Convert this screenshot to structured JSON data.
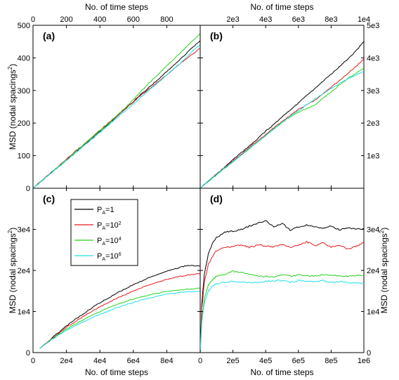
{
  "colors": {
    "P_A=1": "#000000",
    "P_A=10^2": "#e8191c",
    "P_A=10^4": "#26d11b",
    "P_A=10^6": "#1ee0e8"
  },
  "legend": {
    "placement": "panel-c-top-left",
    "entries": [
      {
        "key": "P_A=1",
        "base": "P",
        "sub": "A",
        "eq": "=1",
        "sup": ""
      },
      {
        "key": "P_A=10^2",
        "base": "P",
        "sub": "A",
        "eq": "=10",
        "sup": "2"
      },
      {
        "key": "P_A=10^4",
        "base": "P",
        "sub": "A",
        "eq": "=10",
        "sup": "4"
      },
      {
        "key": "P_A=10^6",
        "base": "P",
        "sub": "A",
        "eq": "=10",
        "sup": "6"
      }
    ]
  },
  "chart_data": [
    {
      "panel": "(a)",
      "type": "line",
      "xlabel": "No. of time steps",
      "xlabel_position": "top",
      "ylabel": "MSD (nodal spacings",
      "ylabel_sup": "2",
      "ylabel_close": ")",
      "ylabel_position": "left",
      "xlim": [
        0,
        1000
      ],
      "ylim": [
        0,
        500
      ],
      "xticks": [
        200,
        400,
        600,
        800
      ],
      "xtick_labels": [
        "200",
        "400",
        "600",
        "800"
      ],
      "yticks": [
        0,
        100,
        200,
        300,
        400,
        500
      ],
      "ytick_labels": [
        "0",
        "100",
        "200",
        "300",
        "400",
        "500"
      ],
      "origin_label": "0",
      "series": [
        {
          "key": "P_A=1",
          "x": [
            0,
            50,
            100,
            150,
            200,
            250,
            300,
            350,
            400,
            450,
            500,
            550,
            600,
            650,
            700,
            750,
            800,
            850,
            900,
            950,
            1000
          ],
          "y": [
            0,
            22,
            44,
            66,
            88,
            110,
            130,
            152,
            174,
            196,
            220,
            242,
            266,
            290,
            312,
            335,
            358,
            382,
            405,
            430,
            453
          ]
        },
        {
          "key": "P_A=10^2",
          "x": [
            0,
            50,
            100,
            150,
            200,
            250,
            300,
            350,
            400,
            450,
            500,
            550,
            600,
            650,
            700,
            750,
            800,
            850,
            900,
            950,
            1000
          ],
          "y": [
            0,
            22,
            45,
            66,
            89,
            112,
            133,
            155,
            178,
            200,
            221,
            243,
            264,
            287,
            307,
            328,
            348,
            370,
            390,
            410,
            430
          ]
        },
        {
          "key": "P_A=10^4",
          "x": [
            0,
            50,
            100,
            150,
            200,
            250,
            300,
            350,
            400,
            450,
            500,
            550,
            600,
            650,
            700,
            750,
            800,
            850,
            900,
            950,
            1000
          ],
          "y": [
            0,
            22,
            43,
            66,
            86,
            110,
            132,
            155,
            176,
            198,
            222,
            246,
            272,
            300,
            326,
            350,
            376,
            400,
            425,
            450,
            475
          ]
        },
        {
          "key": "P_A=10^6",
          "x": [
            0,
            50,
            100,
            150,
            200,
            250,
            300,
            350,
            400,
            450,
            500,
            550,
            600,
            650,
            700,
            750,
            800,
            850,
            900,
            950,
            1000
          ],
          "y": [
            0,
            21,
            43,
            64,
            85,
            106,
            128,
            150,
            171,
            193,
            215,
            237,
            258,
            281,
            303,
            325,
            347,
            370,
            392,
            418,
            440
          ]
        }
      ]
    },
    {
      "panel": "(b)",
      "type": "line",
      "xlabel": "No. of time steps",
      "xlabel_position": "top",
      "ylabel": "",
      "ylabel_position": "right",
      "xlim": [
        0,
        10000
      ],
      "ylim": [
        0,
        5000
      ],
      "xticks": [
        2000,
        4000,
        6000,
        8000,
        10000
      ],
      "xtick_labels": [
        "2e3",
        "4e3",
        "6e3",
        "8e3",
        "1e4"
      ],
      "yticks": [
        1000,
        2000,
        3000,
        4000,
        5000
      ],
      "ytick_labels": [
        "1e3",
        "2e3",
        "3e3",
        "4e3",
        "5e3"
      ],
      "origin_label": "",
      "series": [
        {
          "key": "P_A=1",
          "x": [
            0,
            500,
            1000,
            1500,
            2000,
            2500,
            3000,
            3500,
            4000,
            4500,
            5000,
            5500,
            6000,
            6500,
            7000,
            7500,
            8000,
            8500,
            9000,
            9500,
            10000
          ],
          "y": [
            0,
            220,
            440,
            650,
            870,
            1090,
            1300,
            1520,
            1750,
            1960,
            2180,
            2400,
            2620,
            2840,
            3060,
            3280,
            3500,
            3730,
            3960,
            4200,
            4500
          ]
        },
        {
          "key": "P_A=10^2",
          "x": [
            0,
            500,
            1000,
            1500,
            2000,
            2500,
            3000,
            3500,
            4000,
            4500,
            5000,
            5500,
            6000,
            6500,
            7000,
            7500,
            8000,
            8500,
            9000,
            9500,
            10000
          ],
          "y": [
            0,
            210,
            420,
            630,
            840,
            1040,
            1250,
            1450,
            1650,
            1860,
            2050,
            2230,
            2420,
            2560,
            2700,
            2900,
            3100,
            3300,
            3520,
            3720,
            3980
          ]
        },
        {
          "key": "P_A=10^4",
          "x": [
            0,
            500,
            1000,
            1500,
            2000,
            2500,
            3000,
            3500,
            4000,
            4500,
            5000,
            5500,
            6000,
            6500,
            7000,
            7500,
            8000,
            8500,
            9000,
            9500,
            10000
          ],
          "y": [
            0,
            205,
            410,
            610,
            810,
            1010,
            1210,
            1420,
            1620,
            1830,
            2020,
            2180,
            2340,
            2440,
            2560,
            2760,
            2960,
            3160,
            3360,
            3520,
            3680
          ]
        },
        {
          "key": "P_A=10^6",
          "x": [
            0,
            500,
            1000,
            1500,
            2000,
            2500,
            3000,
            3500,
            4000,
            4500,
            5000,
            5500,
            6000,
            6500,
            7000,
            7500,
            8000,
            8500,
            9000,
            9500,
            10000
          ],
          "y": [
            0,
            210,
            415,
            620,
            820,
            1020,
            1220,
            1420,
            1620,
            1810,
            2010,
            2200,
            2380,
            2560,
            2730,
            2900,
            3060,
            3210,
            3350,
            3470,
            3600
          ]
        }
      ]
    },
    {
      "panel": "(c)",
      "type": "line",
      "xlabel": "No. of time steps",
      "xlabel_position": "bottom",
      "ylabel": "MSD (nodal spacings",
      "ylabel_sup": "2",
      "ylabel_close": ")",
      "ylabel_position": "left",
      "xlim": [
        0,
        100000
      ],
      "ylim": [
        0,
        40000
      ],
      "xticks": [
        0,
        20000,
        40000,
        60000,
        80000
      ],
      "xtick_labels": [
        "0",
        "2e4",
        "4e4",
        "6e4",
        "8e4"
      ],
      "yticks": [
        0,
        10000,
        20000,
        30000
      ],
      "ytick_labels": [
        "0",
        "1e4",
        "2e4",
        "3e4"
      ],
      "origin_label": "",
      "series": [
        {
          "key": "P_A=1",
          "x": [
            4000,
            10000,
            15000,
            20000,
            25000,
            30000,
            35000,
            40000,
            45000,
            50000,
            55000,
            60000,
            65000,
            70000,
            75000,
            80000,
            85000,
            90000,
            95000,
            100000
          ],
          "y": [
            1000,
            3100,
            4800,
            6500,
            8000,
            9400,
            10800,
            12100,
            13300,
            14400,
            15500,
            16500,
            17400,
            18300,
            19100,
            19800,
            20400,
            21000,
            21200,
            21000
          ]
        },
        {
          "key": "P_A=10^2",
          "x": [
            4000,
            10000,
            15000,
            20000,
            25000,
            30000,
            35000,
            40000,
            45000,
            50000,
            55000,
            60000,
            65000,
            70000,
            75000,
            80000,
            85000,
            90000,
            95000,
            100000
          ],
          "y": [
            1000,
            3000,
            4600,
            6100,
            7500,
            8800,
            10000,
            11100,
            12200,
            13200,
            14100,
            15000,
            15800,
            16500,
            17200,
            17800,
            18300,
            18700,
            19000,
            19200
          ]
        },
        {
          "key": "P_A=10^4",
          "x": [
            4000,
            10000,
            15000,
            20000,
            25000,
            30000,
            35000,
            40000,
            45000,
            50000,
            55000,
            60000,
            65000,
            70000,
            75000,
            80000,
            85000,
            90000,
            95000,
            100000
          ],
          "y": [
            1000,
            2900,
            4400,
            5700,
            6900,
            8000,
            9000,
            10000,
            10900,
            11700,
            12400,
            13000,
            13600,
            14100,
            14500,
            14900,
            15100,
            15300,
            15500,
            15700
          ]
        },
        {
          "key": "P_A=10^6",
          "x": [
            4000,
            10000,
            15000,
            20000,
            25000,
            30000,
            35000,
            40000,
            45000,
            50000,
            55000,
            60000,
            65000,
            70000,
            75000,
            80000,
            85000,
            90000,
            95000,
            100000
          ],
          "y": [
            1000,
            2800,
            4200,
            5400,
            6500,
            7500,
            8400,
            9300,
            10100,
            10900,
            11600,
            12200,
            12800,
            13300,
            13800,
            14200,
            14500,
            14700,
            14800,
            14900
          ]
        }
      ]
    },
    {
      "panel": "(d)",
      "type": "line",
      "xlabel": "No. of time steps",
      "xlabel_position": "bottom",
      "ylabel": "MSD (nodal spacings",
      "ylabel_sup": "2",
      "ylabel_close": ")",
      "ylabel_position": "right",
      "xlim": [
        0,
        1000000
      ],
      "ylim": [
        0,
        40000
      ],
      "xticks": [
        0,
        200000,
        400000,
        600000,
        800000,
        1000000
      ],
      "xtick_labels": [
        "0",
        "2e5",
        "4e5",
        "6e5",
        "8e5",
        "1e6"
      ],
      "yticks": [
        0,
        10000,
        20000,
        30000
      ],
      "ytick_labels": [
        "0",
        "1e4",
        "2e4",
        "3e4"
      ],
      "origin_label": "",
      "series": [
        {
          "key": "P_A=1",
          "x": [
            0,
            10000,
            25000,
            50000,
            75000,
            100000,
            150000,
            200000,
            250000,
            300000,
            350000,
            400000,
            450000,
            500000,
            550000,
            600000,
            650000,
            700000,
            750000,
            800000,
            850000,
            900000,
            950000,
            1000000
          ],
          "y": [
            0,
            12000,
            19000,
            24000,
            26500,
            28000,
            29300,
            29600,
            30000,
            30800,
            31500,
            32200,
            30500,
            31500,
            29800,
            30500,
            31000,
            30600,
            30200,
            30800,
            29900,
            30400,
            30000,
            30200
          ]
        },
        {
          "key": "P_A=10^2",
          "x": [
            0,
            10000,
            25000,
            50000,
            75000,
            100000,
            150000,
            200000,
            250000,
            300000,
            350000,
            400000,
            450000,
            500000,
            550000,
            600000,
            650000,
            700000,
            750000,
            800000,
            850000,
            900000,
            950000,
            1000000
          ],
          "y": [
            0,
            10500,
            17000,
            21500,
            23500,
            24800,
            25600,
            25800,
            26200,
            25600,
            26200,
            26000,
            25700,
            26300,
            25600,
            26100,
            27000,
            26000,
            26800,
            25600,
            26200,
            25200,
            25800,
            26800
          ]
        },
        {
          "key": "P_A=10^4",
          "x": [
            0,
            10000,
            25000,
            50000,
            75000,
            100000,
            150000,
            200000,
            250000,
            300000,
            350000,
            400000,
            450000,
            500000,
            550000,
            600000,
            650000,
            700000,
            750000,
            800000,
            850000,
            900000,
            950000,
            1000000
          ],
          "y": [
            0,
            8000,
            13000,
            16500,
            17800,
            18600,
            19000,
            19800,
            19600,
            19000,
            18700,
            18500,
            18500,
            19000,
            18600,
            18900,
            18700,
            18700,
            19000,
            18800,
            18700,
            18600,
            18800,
            18800
          ]
        },
        {
          "key": "P_A=10^6",
          "x": [
            0,
            10000,
            25000,
            50000,
            75000,
            100000,
            150000,
            200000,
            250000,
            300000,
            350000,
            400000,
            450000,
            500000,
            550000,
            600000,
            650000,
            700000,
            750000,
            800000,
            850000,
            900000,
            950000,
            1000000
          ],
          "y": [
            0,
            7500,
            12000,
            15000,
            16200,
            16800,
            17100,
            17300,
            17300,
            17000,
            17100,
            17400,
            17400,
            17600,
            17100,
            17500,
            17400,
            17200,
            17500,
            17100,
            17300,
            17100,
            16900,
            16800
          ]
        }
      ]
    }
  ]
}
